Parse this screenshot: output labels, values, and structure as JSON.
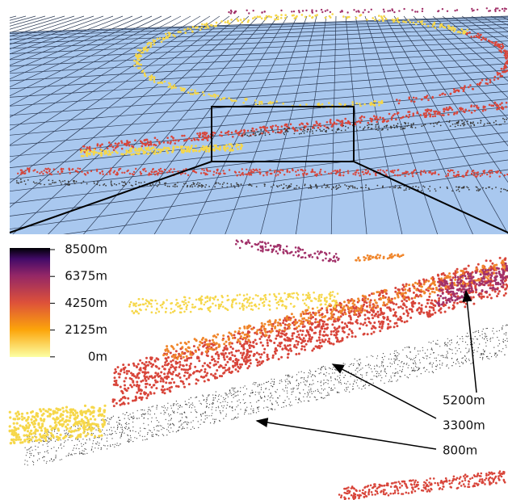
{
  "colorbar": {
    "ticks": [
      "8500m",
      "6375m",
      "4250m",
      "2125m",
      "0m"
    ]
  },
  "annotations": [
    {
      "label": "5200m"
    },
    {
      "label": "3300m"
    },
    {
      "label": "800m"
    }
  ]
}
